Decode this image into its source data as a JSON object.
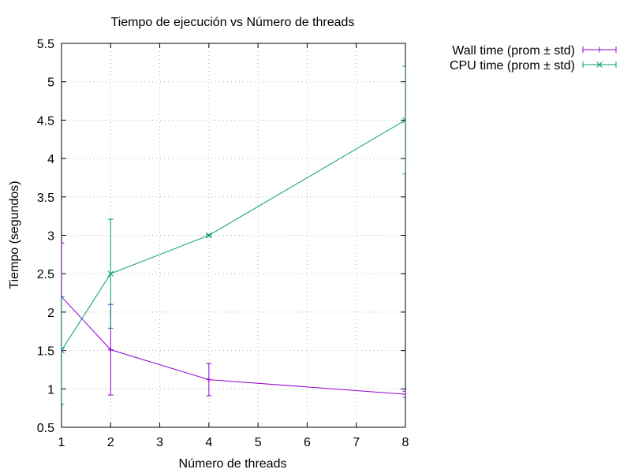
{
  "chart_data": {
    "type": "line",
    "title": "Tiempo de ejecución vs Número de threads",
    "xlabel": "Número de threads",
    "ylabel": "Tiempo (segundos)",
    "xlim": [
      1,
      8
    ],
    "ylim": [
      0.5,
      5.5
    ],
    "xticks": [
      "1",
      "2",
      "3",
      "4",
      "5",
      "6",
      "7",
      "8"
    ],
    "yticks": [
      "0.5",
      "1",
      "1.5",
      "2",
      "2.5",
      "3",
      "3.5",
      "4",
      "4.5",
      "5",
      "5.5"
    ],
    "grid": true,
    "legend_position": "outside-top-right",
    "series": [
      {
        "name": "Wall time (prom ± std)",
        "color": "#9400d3",
        "marker": "plus",
        "x": [
          1,
          2,
          4,
          8
        ],
        "y": [
          2.2,
          1.51,
          1.12,
          0.93
        ],
        "err": [
          0.7,
          0.59,
          0.21,
          0.04
        ]
      },
      {
        "name": "CPU time (prom ± std)",
        "color": "#009e73",
        "marker": "cross",
        "x": [
          1,
          2,
          4,
          8
        ],
        "y": [
          1.5,
          2.5,
          3.0,
          4.5
        ],
        "err": [
          0.7,
          0.71,
          0.01,
          0.7
        ]
      }
    ]
  }
}
